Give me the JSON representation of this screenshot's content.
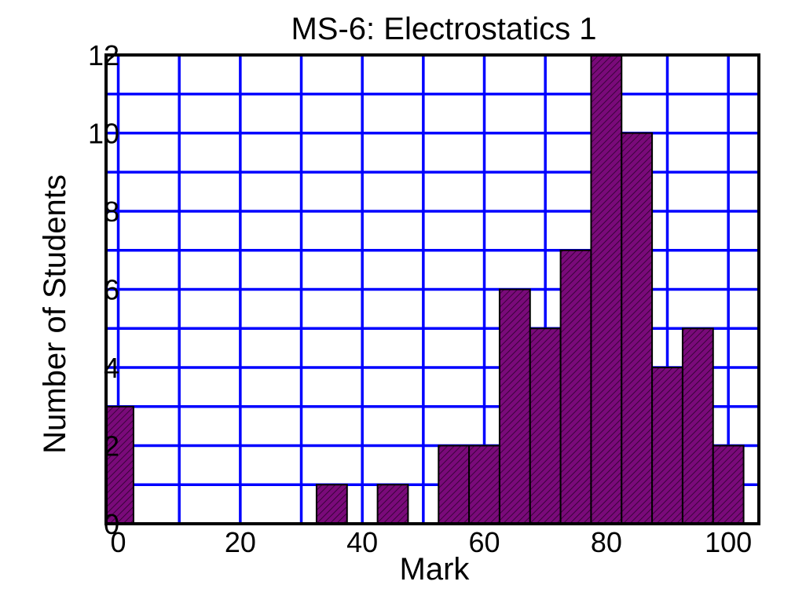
{
  "chart_data": {
    "type": "bar",
    "title": "MS-6: Electrostatics 1",
    "xlabel": "Mark",
    "ylabel": "Number of Students",
    "xlim": [
      -2,
      105
    ],
    "ylim": [
      0,
      12
    ],
    "grid": true,
    "x_ticks": [
      0,
      20,
      40,
      60,
      80,
      100
    ],
    "y_ticks": [
      0,
      2,
      4,
      6,
      8,
      10,
      12
    ],
    "bin_width": 5,
    "bins": [
      {
        "start": -2.5,
        "count": 3
      },
      {
        "start": 32.5,
        "count": 1
      },
      {
        "start": 42.5,
        "count": 1
      },
      {
        "start": 52.5,
        "count": 2
      },
      {
        "start": 57.5,
        "count": 2
      },
      {
        "start": 62.5,
        "count": 6
      },
      {
        "start": 67.5,
        "count": 5
      },
      {
        "start": 72.5,
        "count": 7
      },
      {
        "start": 77.5,
        "count": 12
      },
      {
        "start": 82.5,
        "count": 10
      },
      {
        "start": 87.5,
        "count": 4
      },
      {
        "start": 92.5,
        "count": 5
      },
      {
        "start": 97.5,
        "count": 2
      }
    ],
    "colors": {
      "bar_fill": "#7a0a7a",
      "bar_stroke": "#000000",
      "grid": "#0000ff",
      "frame": "#000000"
    }
  }
}
